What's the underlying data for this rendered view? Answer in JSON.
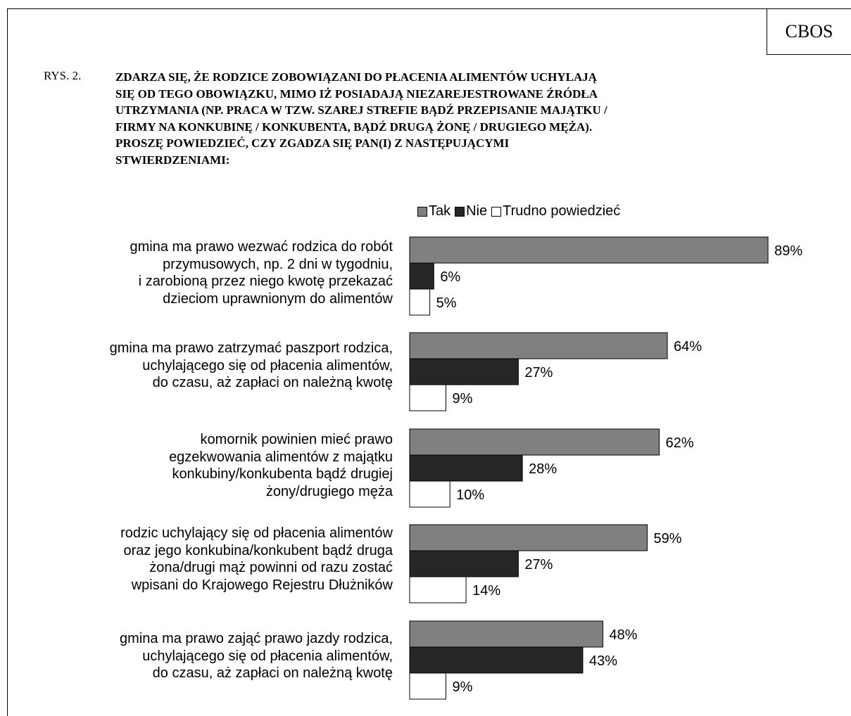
{
  "header": {
    "badge": "CBOS",
    "figure_label": "RYS. 2.",
    "title_lines": [
      "ZDARZA SIĘ, ŻE RODZICE ZOBOWIĄZANI DO PŁACENIA ALIMENTÓW UCHYLAJĄ",
      "SIĘ  OD TEGO OBOWIĄZKU, MIMO IŻ POSIADAJĄ NIEZAREJESTROWANE ŹRÓDŁA",
      "UTRZYMANIA (NP. PRACA W TZW. SZAREJ STREFIE BĄDŹ PRZEPISANIE  MAJĄTKU /",
      "FIRMY NA KONKUBINĘ / KONKUBENTA, BĄDŹ DRUGĄ ŻONĘ / DRUGIEGO MĘŻA).",
      "PROSZĘ POWIEDZIEĆ, CZY ZGADZA SIĘ PAN(I) Z NASTĘPUJĄCYMI",
      "STWIERDZENIAMI:"
    ]
  },
  "chart_data": {
    "type": "bar",
    "orientation": "horizontal",
    "unit": "%",
    "xlim": [
      0,
      100
    ],
    "grid": false,
    "legend_position": "top",
    "categories": [
      [
        "gmina ma prawo wezwać rodzica do robót",
        "przymusowych, np. 2 dni w tygodniu,",
        "i zarobioną przez niego kwotę przekazać",
        "dzieciom uprawnionym do alimentów"
      ],
      [
        "gmina ma prawo zatrzymać paszport rodzica,",
        "uchylającego się od płacenia alimentów,",
        "do czasu, aż zapłaci on należną kwotę"
      ],
      [
        "komornik powinien mieć prawo",
        "egzekwowania alimentów z majątku",
        "konkubiny/konkubenta bądź drugiej",
        "żony/drugiego męża"
      ],
      [
        "rodzic uchylający się od płacenia alimentów",
        "oraz jego konkubina/konkubent bądź druga",
        "żona/drugi mąż powinni od razu zostać",
        "wpisani do Krajowego Rejestru Dłużników"
      ],
      [
        "gmina ma prawo zająć prawo jazdy rodzica,",
        "uchylającego się od płacenia alimentów,",
        "do czasu, aż zapłaci on należną kwotę"
      ]
    ],
    "series": [
      {
        "name": "Tak",
        "color": "#808080",
        "values": [
          89,
          64,
          62,
          59,
          48
        ],
        "labels": [
          "89%",
          "64%",
          "62%",
          "59%",
          "48%"
        ]
      },
      {
        "name": "Nie",
        "color": "#262626",
        "values": [
          6,
          27,
          28,
          27,
          43
        ],
        "labels": [
          "6%",
          "27%",
          "28%",
          "27%",
          "43%"
        ]
      },
      {
        "name": "Trudno powiedzieć",
        "color": "#ffffff",
        "values": [
          5,
          9,
          10,
          14,
          9
        ],
        "labels": [
          "5%",
          "9%",
          "10%",
          "14%",
          "9%"
        ]
      }
    ]
  }
}
